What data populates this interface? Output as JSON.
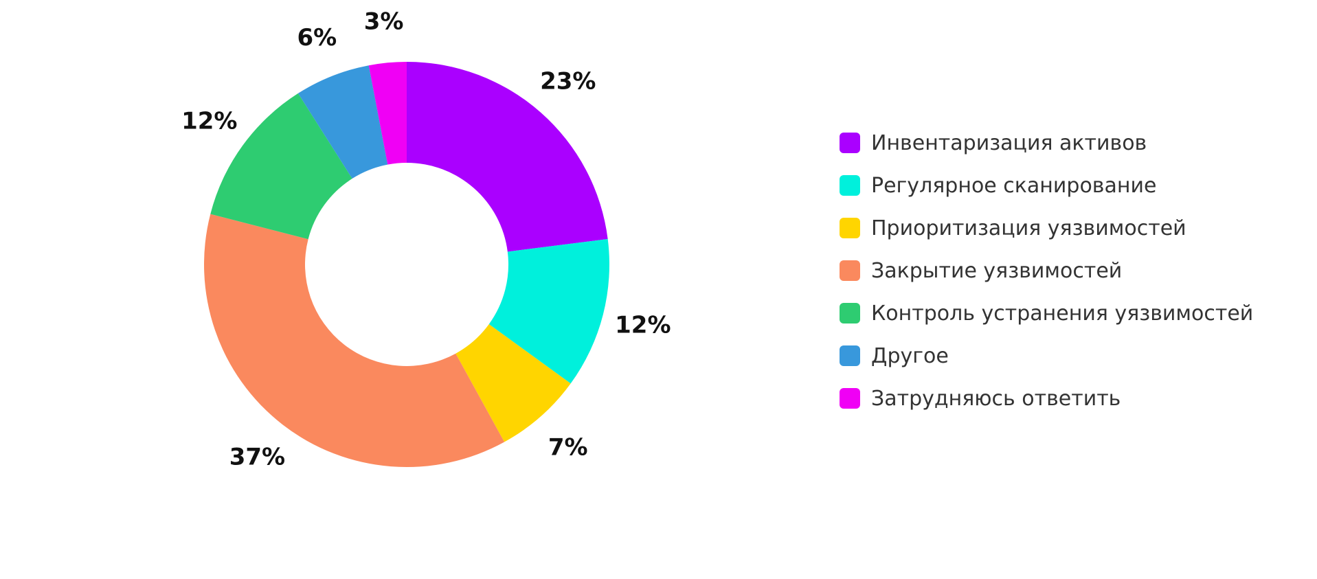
{
  "chart_data": {
    "type": "pie",
    "donut": true,
    "legend_position": "right",
    "slices": [
      {
        "label": "Инвентаризация активов",
        "value": 23,
        "value_label": "23%",
        "color": "#AA00FF"
      },
      {
        "label": "Регулярное сканирование",
        "value": 12,
        "value_label": "12%",
        "color": "#00F0DC"
      },
      {
        "label": "Приоритизация уязвимостей",
        "value": 7,
        "value_label": "7%",
        "color": "#FFD500"
      },
      {
        "label": "Закрытие уязвимостей",
        "value": 37,
        "value_label": "37%",
        "color": "#FA895E"
      },
      {
        "label": "Контроль устранения уязвимостей",
        "value": 12,
        "value_label": "12%",
        "color": "#2ECC71"
      },
      {
        "label": "Другое",
        "value": 6,
        "value_label": "6%",
        "color": "#3898DC"
      },
      {
        "label": "Затрудняюсь ответить",
        "value": 3,
        "value_label": "3%",
        "color": "#F000F5"
      }
    ]
  }
}
